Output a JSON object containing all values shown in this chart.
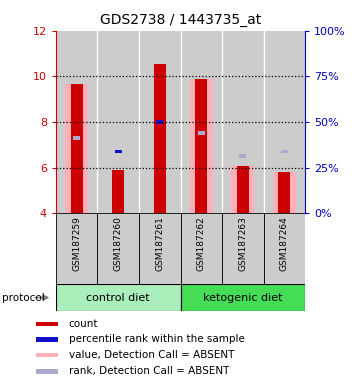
{
  "title": "GDS2738 / 1443735_at",
  "samples": [
    "GSM187259",
    "GSM187260",
    "GSM187261",
    "GSM187262",
    "GSM187263",
    "GSM187264"
  ],
  "is_absent": [
    true,
    false,
    false,
    false,
    true,
    true
  ],
  "bar_bottom": 4,
  "ylim": [
    4,
    12
  ],
  "yticks_left": [
    4,
    6,
    8,
    10,
    12
  ],
  "yticks_right_pos": [
    4,
    6,
    8,
    10,
    12
  ],
  "yticks_right_labels": [
    "0%",
    "25%",
    "50%",
    "75%",
    "100%"
  ],
  "red_bar_top": [
    9.65,
    5.9,
    10.52,
    9.9,
    6.05,
    5.8
  ],
  "pink_bar_top": [
    9.65,
    null,
    null,
    9.9,
    6.05,
    5.8
  ],
  "blue_sq_y": [
    7.3,
    6.7,
    8.0,
    7.5,
    null,
    null
  ],
  "lightblue_sq_y": [
    7.3,
    null,
    null,
    7.5,
    6.5,
    6.7
  ],
  "red_bar_width": 0.28,
  "pink_bar_width": 0.55,
  "sq_size": 0.16,
  "red_color": "#CC0000",
  "pink_color": "#FFB0B8",
  "blue_color": "#1111CC",
  "lightblue_color": "#AAAACC",
  "bg_color": "#CCCCCC",
  "ctrl_color": "#AAEEBB",
  "keto_color": "#44DD55",
  "left_tick_color": "#CC0000",
  "right_tick_color": "#0000BB",
  "legend_items": [
    {
      "label": "count",
      "color": "#CC0000"
    },
    {
      "label": "percentile rank within the sample",
      "color": "#1111CC"
    },
    {
      "label": "value, Detection Call = ABSENT",
      "color": "#FFB0B8"
    },
    {
      "label": "rank, Detection Call = ABSENT",
      "color": "#AAAACC"
    }
  ]
}
